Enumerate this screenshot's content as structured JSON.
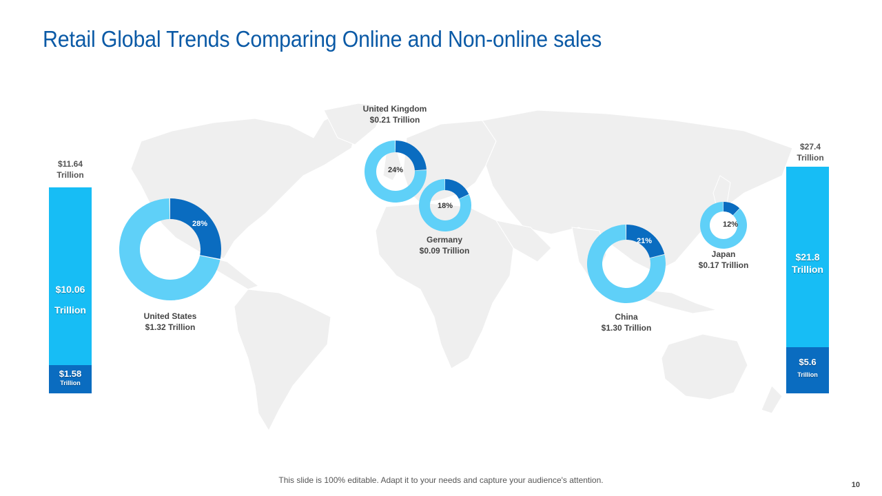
{
  "slide": {
    "title": "Retail Global Trends Comparing Online and Non-online sales",
    "footer": "This slide is 100% editable. Adapt it to your needs and capture your audience's attention.",
    "page_number": "10"
  },
  "colors": {
    "title": "#0b5aa6",
    "online": "#0a6cc0",
    "non_online": "#5fd0f8",
    "bar_light": "#17bdf5",
    "bar_dark": "#0a6cc0",
    "map": "#efefef"
  },
  "chart_data": [
    {
      "type": "bar",
      "stacked": true,
      "total_label": "$11.64\nTrillion",
      "segments": [
        {
          "value": 10.06,
          "label": "$10.06",
          "unit": "Trillion"
        },
        {
          "value": 1.58,
          "label": "$1.58",
          "unit": "Trillion"
        }
      ],
      "total": 11.64
    },
    {
      "type": "bar",
      "stacked": true,
      "total_label": "$27.4\nTrillion",
      "segments": [
        {
          "value": 21.8,
          "label": "$21.8",
          "unit": "Trillion"
        },
        {
          "value": 5.6,
          "label": "$5.6",
          "unit": "Trillion"
        }
      ],
      "total": 27.4
    },
    {
      "type": "pie",
      "variant": "donut",
      "countries": [
        {
          "name": "United States",
          "value_label": "$1.32 Trillion",
          "online_pct": 28,
          "pct_label": "28%"
        },
        {
          "name": "United Kingdom",
          "value_label": "$0.21 Trillion",
          "online_pct": 24,
          "pct_label": "24%"
        },
        {
          "name": "Germany",
          "value_label": "$0.09 Trillion",
          "online_pct": 18,
          "pct_label": "18%"
        },
        {
          "name": "China",
          "value_label": "$1.30 Trillion",
          "online_pct": 21,
          "pct_label": "21%"
        },
        {
          "name": "Japan",
          "value_label": "$0.17 Trillion",
          "online_pct": 12,
          "pct_label": "12%"
        }
      ]
    }
  ]
}
